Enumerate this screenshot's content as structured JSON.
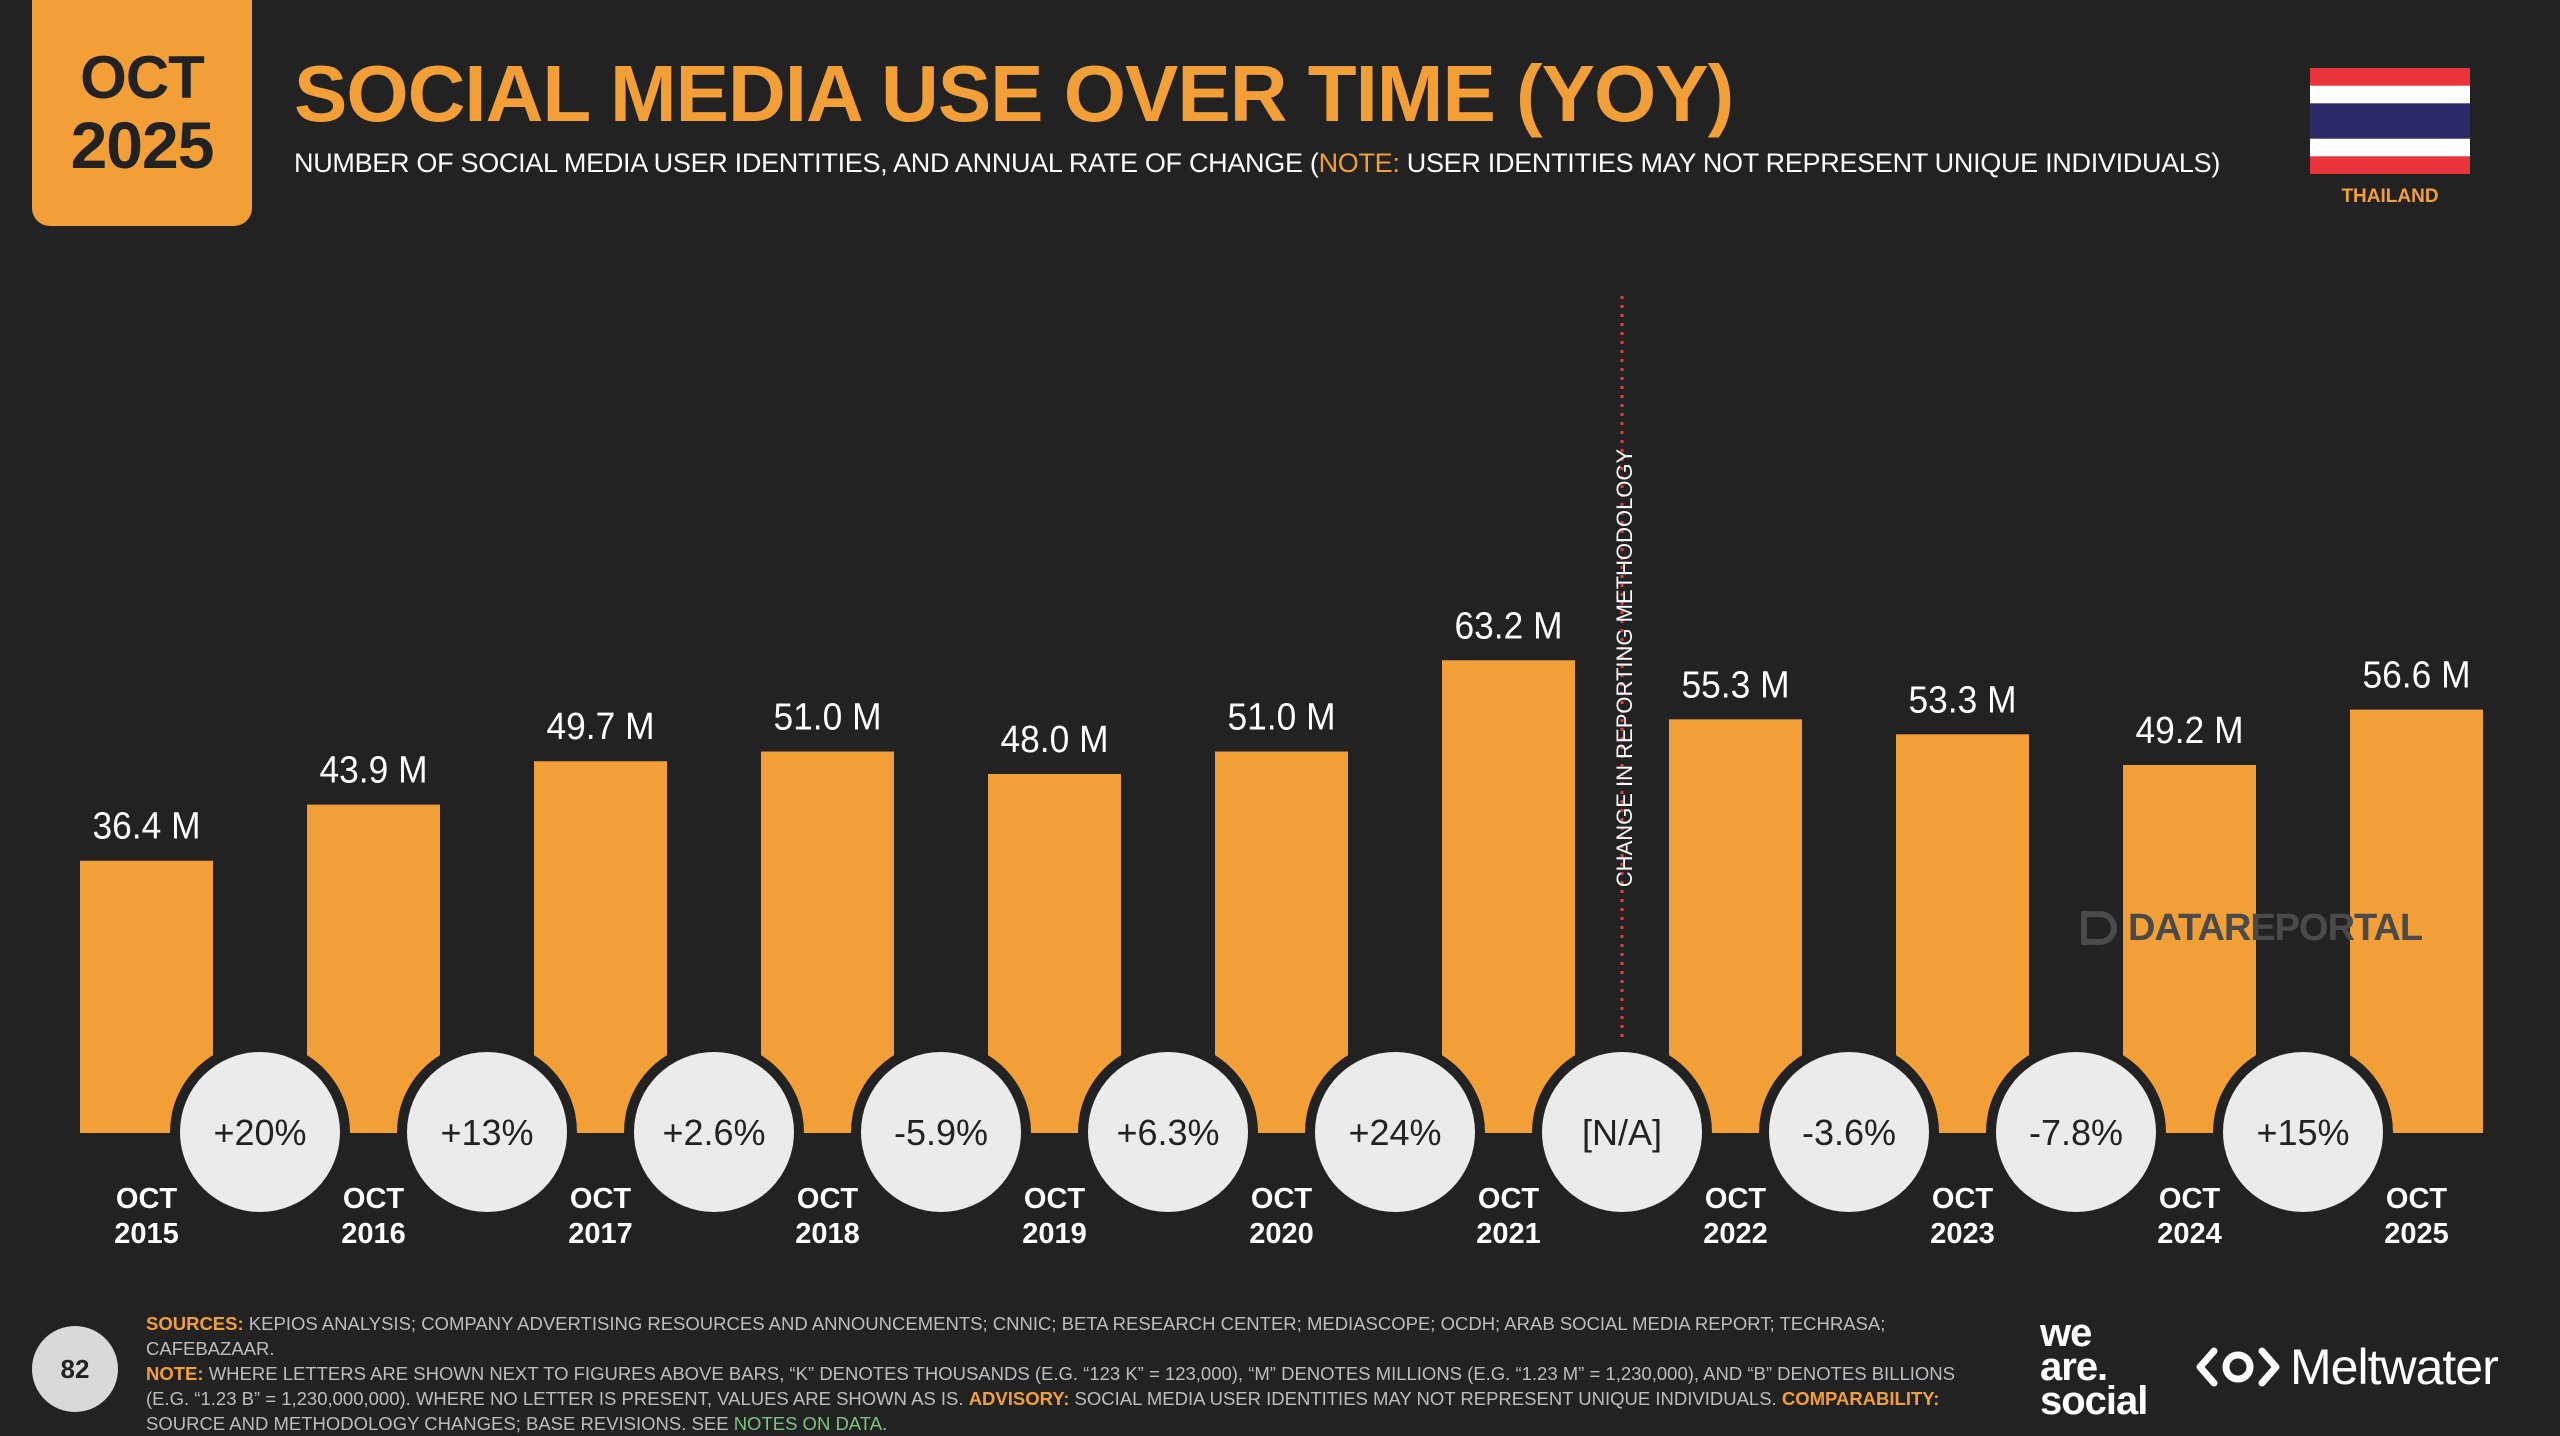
{
  "header": {
    "badge_month": "OCT",
    "badge_year": "2025",
    "title": "SOCIAL MEDIA USE OVER TIME (YOY)",
    "subtitle_main": "NUMBER OF SOCIAL MEDIA USER IDENTITIES, AND ANNUAL RATE OF CHANGE (",
    "subtitle_note_label": "NOTE:",
    "subtitle_note": " USER IDENTITIES MAY NOT REPRESENT UNIQUE INDIVIDUALS)",
    "country": "THAILAND"
  },
  "chart_data": {
    "type": "bar",
    "title": "SOCIAL MEDIA USE OVER TIME (YOY)",
    "categories": [
      "OCT 2015",
      "OCT 2016",
      "OCT 2017",
      "OCT 2018",
      "OCT 2019",
      "OCT 2020",
      "OCT 2021",
      "OCT 2022",
      "OCT 2023",
      "OCT 2024",
      "OCT 2025"
    ],
    "category_months": [
      "OCT",
      "OCT",
      "OCT",
      "OCT",
      "OCT",
      "OCT",
      "OCT",
      "OCT",
      "OCT",
      "OCT",
      "OCT"
    ],
    "category_years": [
      "2015",
      "2016",
      "2017",
      "2018",
      "2019",
      "2020",
      "2021",
      "2022",
      "2023",
      "2024",
      "2025"
    ],
    "values": [
      36.4,
      43.9,
      49.7,
      51.0,
      48.0,
      51.0,
      63.2,
      55.3,
      53.3,
      49.2,
      56.6
    ],
    "value_labels": [
      "36.4 M",
      "43.9 M",
      "49.7 M",
      "51.0 M",
      "48.0 M",
      "51.0 M",
      "63.2 M",
      "55.3 M",
      "53.3 M",
      "49.2 M",
      "56.6 M"
    ],
    "units": "millions",
    "change_labels": [
      "+20%",
      "+13%",
      "+2.6%",
      "-5.9%",
      "+6.3%",
      "+24%",
      "[N/A]",
      "-3.6%",
      "-7.8%",
      "+15%"
    ],
    "annotation": "CHANGE IN REPORTING METHODOLOGY",
    "annotation_after_category": "OCT 2021",
    "ylim": [
      0,
      70
    ],
    "xlabel": "",
    "ylabel": "",
    "bar_color": "#f29f38",
    "circle_color": "#ebebeb",
    "annotation_color": "#e0403a"
  },
  "watermark": "DATAREPORTAL",
  "footer": {
    "page_number": "82",
    "sources_label": "SOURCES:",
    "sources": " KEPIOS ANALYSIS; COMPANY ADVERTISING RESOURCES AND ANNOUNCEMENTS; CNNIC; BETA RESEARCH CENTER; MEDIASCOPE; OCDH; ARAB SOCIAL MEDIA REPORT; TECHRASA; CAFEBAZAAR.",
    "note_label": "NOTE:",
    "note": " WHERE LETTERS ARE SHOWN NEXT TO FIGURES ABOVE BARS, “K” DENOTES THOUSANDS (E.G. “123 K” = 123,000), “M” DENOTES MILLIONS (E.G. “1.23 M” = 1,230,000), AND “B” DENOTES BILLIONS (E.G. “1.23 B” = 1,230,000,000). WHERE NO LETTER IS PRESENT, VALUES ARE SHOWN AS IS.",
    "advisory_label": "ADVISORY:",
    "advisory": " SOCIAL MEDIA USER IDENTITIES MAY NOT REPRESENT UNIQUE INDIVIDUALS.",
    "comparability_label": "COMPARABILITY:",
    "comparability": " SOURCE AND METHODOLOGY CHANGES; BASE REVISIONS. SEE ",
    "notes_link": "NOTES ON DATA",
    "end": ".",
    "brand_we": "we",
    "brand_are": "are.",
    "brand_social": "social",
    "brand_meltwater": "Meltwater"
  },
  "colors": {
    "background": "#222222",
    "accent": "#f29f38"
  }
}
